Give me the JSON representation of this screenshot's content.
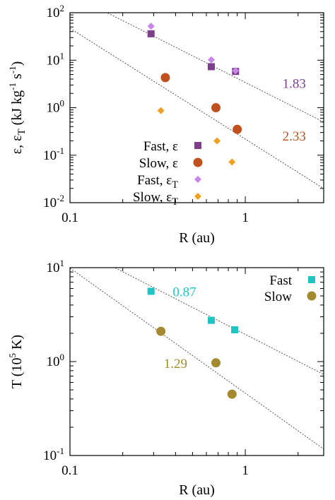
{
  "chart_data": [
    {
      "type": "scatter",
      "xlabel": "R (au)",
      "ylabel": "ε, ε_T (kJ kg⁻¹ s⁻¹)",
      "x_scale": "log",
      "y_scale": "log",
      "xlim": [
        0.1,
        2.8
      ],
      "ylim": [
        0.01,
        100
      ],
      "x_ticks": [
        {
          "value": 0.1,
          "label": "0.1"
        },
        {
          "value": 1,
          "label": "1"
        }
      ],
      "y_ticks": [
        {
          "value": 0.01,
          "mant": "10",
          "exp": "-2"
        },
        {
          "value": 0.1,
          "mant": "10",
          "exp": "-1"
        },
        {
          "value": 1,
          "mant": "10",
          "exp": "0"
        },
        {
          "value": 10,
          "mant": "10",
          "exp": "1"
        },
        {
          "value": 100,
          "mant": "10",
          "exp": "2"
        }
      ],
      "series": [
        {
          "name": "Fast, ε",
          "color": "#7b3f8c",
          "marker": "square",
          "points": [
            [
              0.29,
              36
            ],
            [
              0.64,
              7.3
            ],
            [
              0.88,
              5.8
            ]
          ]
        },
        {
          "name": "Slow, ε",
          "color": "#c0501e",
          "marker": "circle",
          "points": [
            [
              0.35,
              4.3
            ],
            [
              0.68,
              1.0
            ],
            [
              0.9,
              0.35
            ]
          ]
        },
        {
          "name": "Fast, ε_T",
          "color": "#c785e8",
          "marker": "diamond",
          "points": [
            [
              0.29,
              52
            ],
            [
              0.64,
              10.2
            ],
            [
              0.88,
              6.0
            ]
          ]
        },
        {
          "name": "Slow, ε_T",
          "color": "#f0a020",
          "marker": "diamond",
          "points": [
            [
              0.33,
              0.87
            ],
            [
              0.69,
              0.2
            ],
            [
              0.84,
              0.072
            ]
          ]
        }
      ],
      "fit_lines": [
        {
          "x": [
            0.1,
            2.8
          ],
          "y": [
            248,
            0.5
          ],
          "style": "dotted"
        },
        {
          "x": [
            0.1,
            2.8
          ],
          "y": [
            47,
            0.0198
          ],
          "style": "dotted"
        }
      ],
      "annotations": [
        {
          "text": "1.83",
          "x": 1.9,
          "y": 3.2,
          "color": "#7b3f8c"
        },
        {
          "text": "2.33",
          "x": 1.9,
          "y": 0.25,
          "color": "#b5541e"
        }
      ],
      "legend_position": "bottom-right"
    },
    {
      "type": "scatter",
      "xlabel": "R (au)",
      "ylabel": "T (10⁵ K)",
      "x_scale": "log",
      "y_scale": "log",
      "xlim": [
        0.1,
        2.8
      ],
      "ylim": [
        0.1,
        10
      ],
      "x_ticks": [
        {
          "value": 0.1,
          "label": "0.1"
        },
        {
          "value": 1,
          "label": "1"
        }
      ],
      "y_ticks": [
        {
          "value": 0.1,
          "mant": "10",
          "exp": "-1"
        },
        {
          "value": 1,
          "mant": "10",
          "exp": "0"
        },
        {
          "value": 10,
          "mant": "10",
          "exp": "1"
        }
      ],
      "series": [
        {
          "name": "Fast",
          "color": "#1fc4c4",
          "marker": "square",
          "points": [
            [
              0.29,
              5.6
            ],
            [
              0.64,
              2.75
            ],
            [
              0.87,
              2.18
            ]
          ]
        },
        {
          "name": "Slow",
          "color": "#a38a2e",
          "marker": "circle",
          "points": [
            [
              0.33,
              2.1
            ],
            [
              0.68,
              0.97
            ],
            [
              0.84,
              0.45
            ]
          ]
        }
      ],
      "fit_lines": [
        {
          "x": [
            0.1,
            2.8
          ],
          "y": [
            17.5,
            0.73
          ],
          "style": "dotted"
        },
        {
          "x": [
            0.1,
            2.8
          ],
          "y": [
            9.9,
            0.117
          ],
          "style": "dotted"
        }
      ],
      "annotations": [
        {
          "text": "0.87",
          "x": 0.45,
          "y": 5.5,
          "color": "#1fc4c4"
        },
        {
          "text": "1.29",
          "x": 0.4,
          "y": 0.95,
          "color": "#a38a2e"
        }
      ],
      "legend_position": "top-right"
    }
  ]
}
